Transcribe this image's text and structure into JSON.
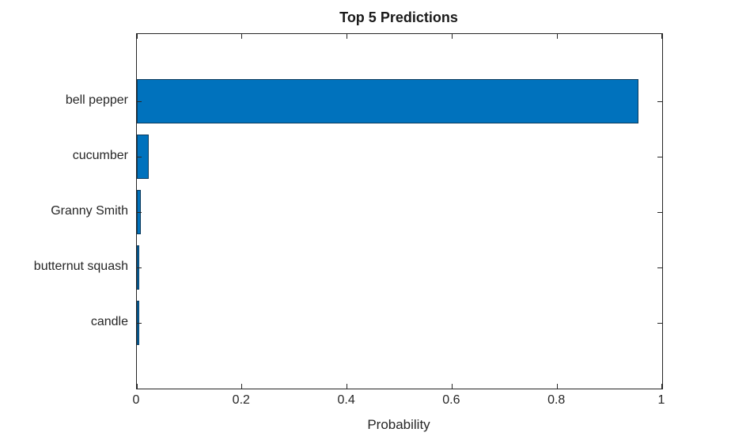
{
  "chart_data": {
    "type": "bar",
    "orientation": "horizontal",
    "title": "Top 5 Predictions",
    "xlabel": "Probability",
    "ylabel": "",
    "categories": [
      "bell pepper",
      "cucumber",
      "Granny Smith",
      "butternut squash",
      "candle"
    ],
    "values": [
      0.955,
      0.022,
      0.008,
      0.004,
      0.004
    ],
    "xlim": [
      0,
      1
    ],
    "xticks": [
      0,
      0.2,
      0.4,
      0.6,
      0.8,
      1
    ],
    "xtick_labels": [
      "0",
      "0.2",
      "0.4",
      "0.6",
      "0.8",
      "1"
    ],
    "grid": false,
    "legend_position": "none",
    "colors": {
      "bar_fill": "#0072BD",
      "bar_edge": "#0b3a5c",
      "axis": "#262626",
      "background": "#ffffff"
    }
  }
}
